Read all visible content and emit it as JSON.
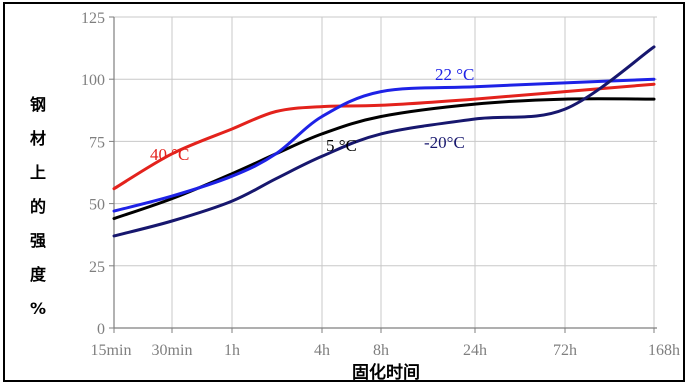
{
  "chart_data": {
    "type": "line",
    "ylabel": "钢材上的强度%",
    "xlabel": "固化时间",
    "ylim": [
      0,
      125
    ],
    "y_ticks": [
      "0",
      "25",
      "50",
      "75",
      "100",
      "125"
    ],
    "x_ticks": [
      "15min",
      "30min",
      "1h",
      "4h",
      "8h",
      "24h",
      "72h",
      "168h"
    ],
    "x_scale": "log",
    "grid": true,
    "series": [
      {
        "name": "40 °C",
        "color": "#e3221c",
        "x": [
          "15min",
          "30min",
          "1h",
          "2h",
          "4h",
          "8h",
          "24h",
          "72h",
          "168h"
        ],
        "values": [
          56,
          70,
          80,
          87,
          89,
          89.5,
          92,
          95,
          98
        ]
      },
      {
        "name": "22 °C",
        "color": "#1e22e6",
        "x": [
          "15min",
          "30min",
          "1h",
          "2h",
          "4h",
          "8h",
          "24h",
          "72h",
          "168h"
        ],
        "values": [
          47,
          53,
          61,
          70,
          85,
          95,
          97,
          98.5,
          100
        ]
      },
      {
        "name": "5 °C",
        "color": "#000000",
        "x": [
          "15min",
          "30min",
          "1h",
          "2h",
          "4h",
          "8h",
          "24h",
          "72h",
          "168h"
        ],
        "values": [
          44,
          52,
          62,
          70,
          78,
          85,
          90,
          92,
          92
        ]
      },
      {
        "name": "-20°C",
        "color": "#17176e",
        "x": [
          "15min",
          "30min",
          "1h",
          "2h",
          "4h",
          "8h",
          "24h",
          "72h",
          "168h"
        ],
        "values": [
          37,
          43,
          51,
          60,
          69,
          78,
          84,
          88,
          113
        ]
      }
    ]
  }
}
